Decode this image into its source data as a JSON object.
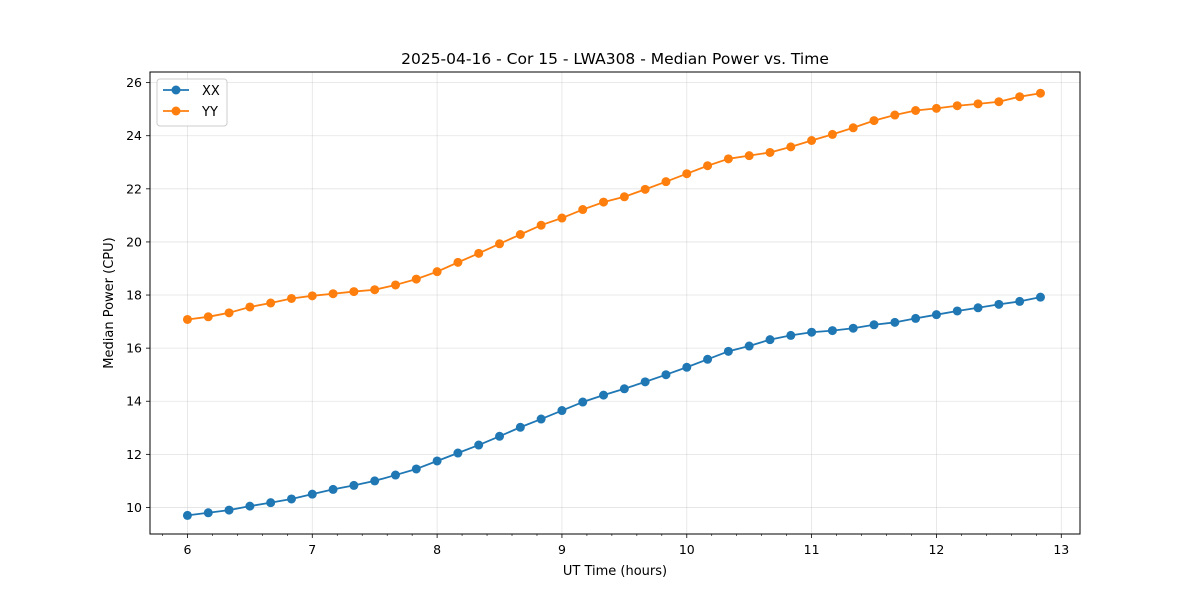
{
  "chart_data": {
    "type": "line",
    "title": "2025-04-16 - Cor 15 - LWA308 - Median Power vs. Time",
    "xlabel": "UT Time (hours)",
    "ylabel": "Median Power (CPU)",
    "xlim": [
      5.7,
      13.15
    ],
    "ylim": [
      9.0,
      26.4
    ],
    "xticks": [
      6,
      7,
      8,
      9,
      10,
      11,
      12,
      13
    ],
    "yticks": [
      10,
      12,
      14,
      16,
      18,
      20,
      22,
      24,
      26
    ],
    "grid": true,
    "legend": "top-left",
    "x": [
      6.0,
      6.1667,
      6.3333,
      6.5,
      6.6667,
      6.8333,
      7.0,
      7.1667,
      7.3333,
      7.5,
      7.6667,
      7.8333,
      8.0,
      8.1667,
      8.3333,
      8.5,
      8.6667,
      8.8333,
      9.0,
      9.1667,
      9.3333,
      9.5,
      9.6667,
      9.8333,
      10.0,
      10.1667,
      10.3333,
      10.5,
      10.6667,
      10.8333,
      11.0,
      11.1667,
      11.3333,
      11.5,
      11.6667,
      11.8333,
      12.0,
      12.1667,
      12.3333,
      12.5,
      12.6667,
      12.8333
    ],
    "series": [
      {
        "name": "XX",
        "color": "#1f77b4",
        "values": [
          9.7,
          9.8,
          9.9,
          10.05,
          10.18,
          10.32,
          10.5,
          10.68,
          10.83,
          11.0,
          11.22,
          11.45,
          11.75,
          12.05,
          12.35,
          12.68,
          13.02,
          13.33,
          13.65,
          13.97,
          14.23,
          14.47,
          14.73,
          15.0,
          15.28,
          15.58,
          15.88,
          16.08,
          16.32,
          16.48,
          16.6,
          16.66,
          16.75,
          16.88,
          16.97,
          17.12,
          17.26,
          17.4,
          17.52,
          17.65,
          17.76,
          17.92
        ]
      },
      {
        "name": "YY",
        "color": "#ff7f0e",
        "values": [
          17.08,
          17.18,
          17.33,
          17.55,
          17.7,
          17.87,
          17.97,
          18.05,
          18.13,
          18.2,
          18.38,
          18.6,
          18.88,
          19.23,
          19.57,
          19.93,
          20.28,
          20.63,
          20.9,
          21.22,
          21.5,
          21.7,
          21.98,
          22.27,
          22.57,
          22.87,
          23.13,
          23.25,
          23.37,
          23.58,
          23.82,
          24.05,
          24.3,
          24.57,
          24.78,
          24.95,
          25.03,
          25.13,
          25.2,
          25.28,
          25.47,
          25.6
        ]
      }
    ]
  }
}
